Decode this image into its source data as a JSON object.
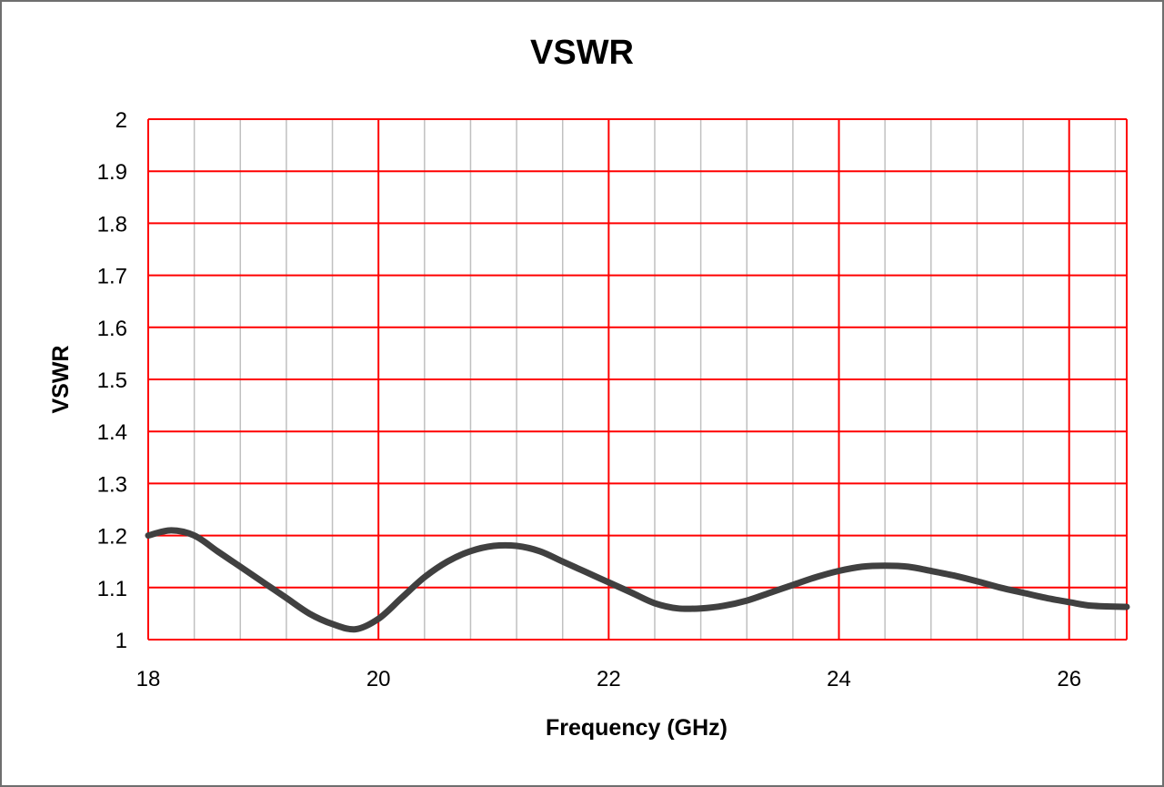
{
  "chart_data": {
    "type": "line",
    "title": "VSWR",
    "xlabel": "Frequency (GHz)",
    "ylabel": "VSWR",
    "xlim": [
      18,
      26.5
    ],
    "ylim": [
      1,
      2
    ],
    "x_ticks": [
      18,
      20,
      22,
      24,
      26
    ],
    "y_ticks": [
      1,
      1.1,
      1.2,
      1.3,
      1.4,
      1.5,
      1.6,
      1.7,
      1.8,
      1.9,
      2
    ],
    "x_tick_labels": [
      "18",
      "20",
      "22",
      "24",
      "26"
    ],
    "y_tick_labels": [
      "1",
      "1.1",
      "1.2",
      "1.3",
      "1.4",
      "1.5",
      "1.6",
      "1.7",
      "1.8",
      "1.9",
      "2"
    ],
    "x_minor_step": 0.4,
    "grid": true,
    "legend": false,
    "colors": {
      "major_grid": "#ff0000",
      "minor_grid": "#c0c0c0",
      "line": "#404040",
      "frame": "#6f6f6f"
    },
    "series": [
      {
        "x": [
          18.0,
          18.2,
          18.4,
          18.6,
          18.8,
          19.0,
          19.2,
          19.4,
          19.6,
          19.8,
          20.0,
          20.2,
          20.4,
          20.6,
          20.8,
          21.0,
          21.2,
          21.4,
          21.6,
          21.8,
          22.0,
          22.2,
          22.4,
          22.6,
          22.8,
          23.0,
          23.2,
          23.4,
          23.6,
          23.8,
          24.0,
          24.2,
          24.4,
          24.6,
          24.8,
          25.0,
          25.2,
          25.4,
          25.6,
          25.8,
          26.0,
          26.2,
          26.5
        ],
        "y": [
          1.2,
          1.21,
          1.2,
          1.17,
          1.14,
          1.11,
          1.08,
          1.05,
          1.03,
          1.02,
          1.04,
          1.08,
          1.12,
          1.15,
          1.17,
          1.18,
          1.18,
          1.17,
          1.15,
          1.13,
          1.11,
          1.09,
          1.07,
          1.06,
          1.06,
          1.065,
          1.075,
          1.09,
          1.105,
          1.12,
          1.132,
          1.14,
          1.142,
          1.14,
          1.132,
          1.123,
          1.112,
          1.1,
          1.09,
          1.08,
          1.072,
          1.065,
          1.063
        ]
      }
    ]
  }
}
